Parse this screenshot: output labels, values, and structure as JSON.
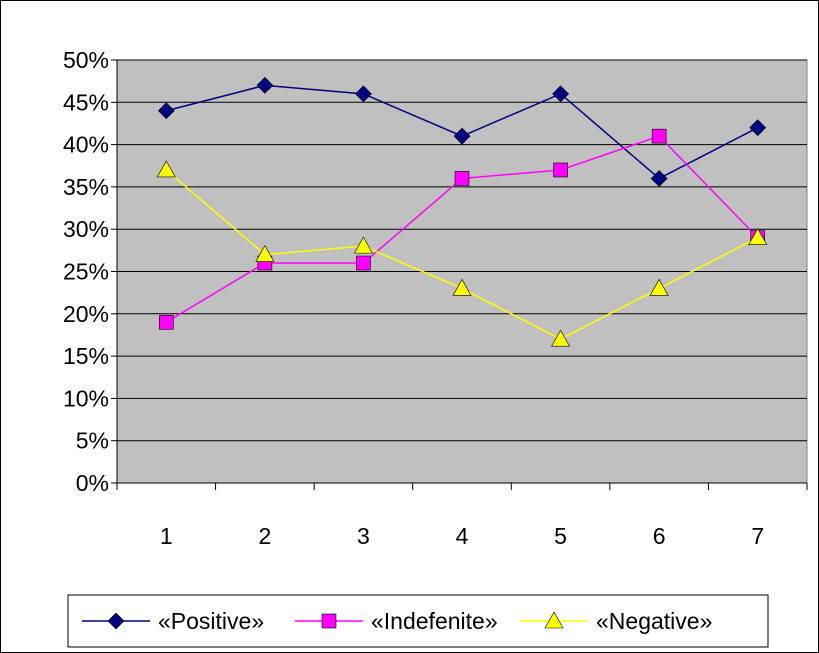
{
  "chart_data": {
    "type": "line",
    "title": "",
    "xlabel": "",
    "ylabel": "",
    "categories": [
      "1",
      "2",
      "3",
      "4",
      "5",
      "6",
      "7"
    ],
    "ylim": [
      0,
      50
    ],
    "y_ticks": [
      "0%",
      "5%",
      "10%",
      "15%",
      "20%",
      "25%",
      "30%",
      "35%",
      "40%",
      "45%",
      "50%"
    ],
    "y_unit": "%",
    "grid": "horizontal",
    "plot_background": "#c0c0c0",
    "legend_position": "bottom",
    "series": [
      {
        "name": "«Positive»",
        "values": [
          44,
          47,
          46,
          41,
          46,
          36,
          42
        ],
        "color": "#000080",
        "marker": "diamond"
      },
      {
        "name": "«Indefenite»",
        "values": [
          19,
          26,
          26,
          36,
          37,
          41,
          29
        ],
        "color": "#ff00ff",
        "marker": "square"
      },
      {
        "name": "«Negative»",
        "values": [
          37,
          27,
          28,
          23,
          17,
          23,
          29
        ],
        "color": "#ffff00",
        "marker": "triangle"
      }
    ]
  }
}
